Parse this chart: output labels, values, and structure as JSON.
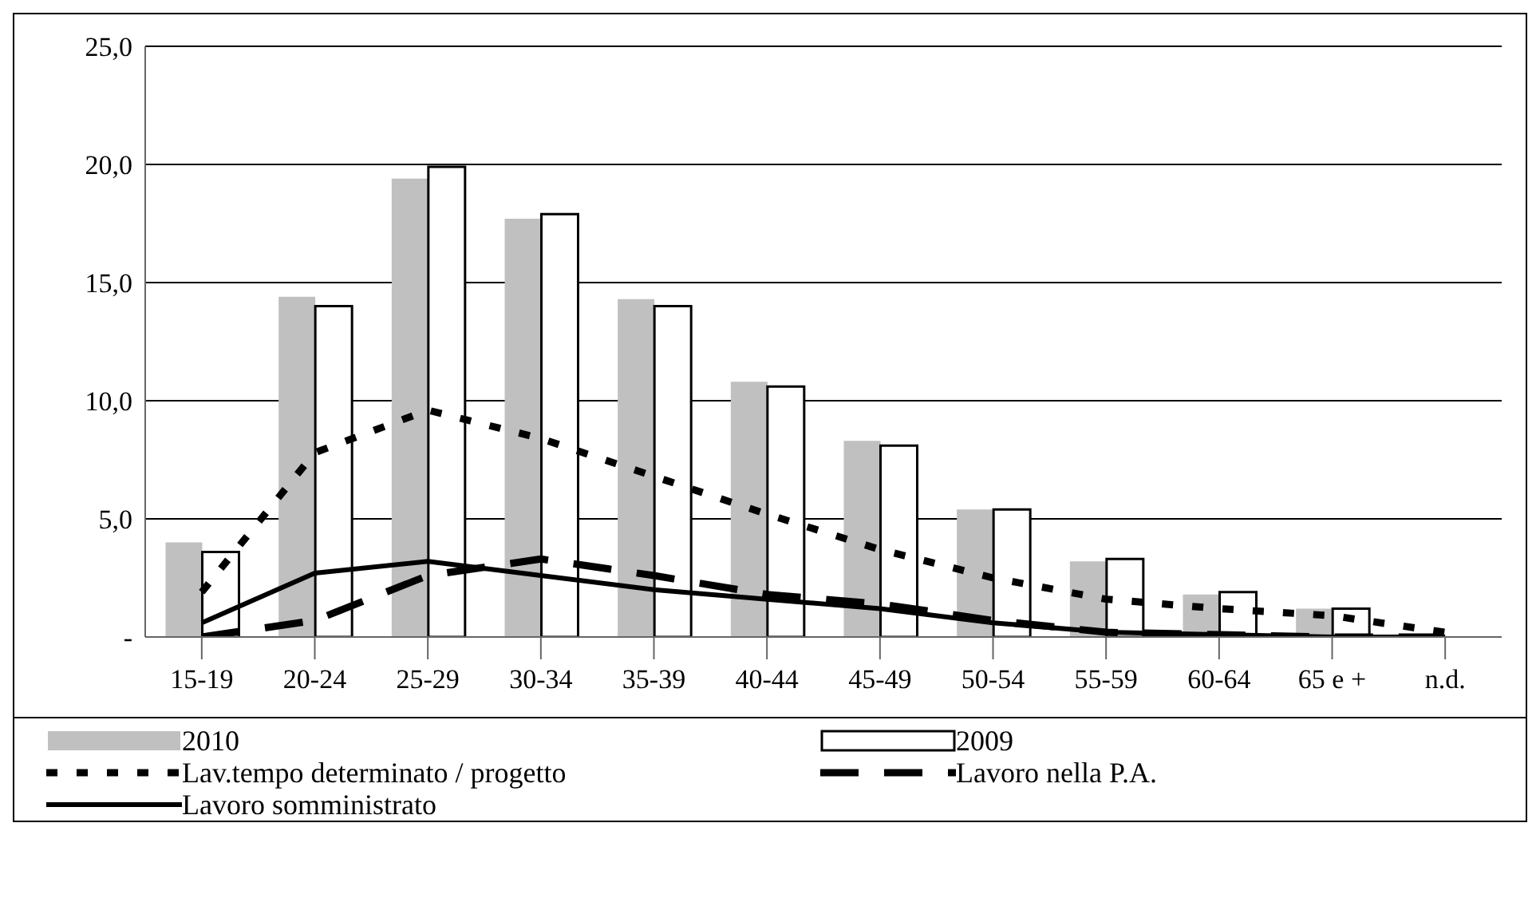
{
  "chart_data": {
    "type": "bar",
    "categories": [
      "15-19",
      "20-24",
      "25-29",
      "30-34",
      "35-39",
      "40-44",
      "45-49",
      "50-54",
      "55-59",
      "60-64",
      "65 e +",
      "n.d."
    ],
    "series": [
      {
        "name": "2010",
        "color": "#c0c0c0",
        "values": [
          4.0,
          14.4,
          19.4,
          17.7,
          14.3,
          10.8,
          8.3,
          5.4,
          3.2,
          1.8,
          1.2,
          null
        ]
      },
      {
        "name": "2009",
        "color": "#ffffff",
        "values": [
          3.6,
          14.0,
          19.9,
          17.9,
          14.0,
          10.6,
          8.1,
          5.4,
          3.3,
          1.9,
          1.2,
          null
        ]
      },
      {
        "name": "Lav.tempo determinato / progetto",
        "type": "line",
        "line_style": "dotted",
        "color": "#000000",
        "values": [
          1.9,
          7.8,
          9.6,
          8.4,
          6.8,
          5.2,
          3.7,
          2.5,
          1.6,
          1.2,
          0.9,
          0.2
        ]
      },
      {
        "name": "Lavoro nella P.A.",
        "type": "line",
        "line_style": "dashed",
        "color": "#000000",
        "values": [
          0.0,
          0.7,
          2.6,
          3.3,
          2.6,
          1.8,
          1.4,
          0.7,
          0.2,
          0.1,
          0.0,
          0.0
        ]
      },
      {
        "name": "Lavoro somministrato",
        "type": "line",
        "line_style": "solid",
        "color": "#000000",
        "values": [
          0.6,
          2.7,
          3.2,
          2.6,
          2.0,
          1.6,
          1.2,
          0.6,
          0.2,
          0.1,
          0.0,
          0.0
        ]
      }
    ],
    "ylim": [
      0,
      25
    ],
    "yticks": [
      {
        "value": 0,
        "label": "-"
      },
      {
        "value": 5,
        "label": "5,0"
      },
      {
        "value": 10,
        "label": "10,0"
      },
      {
        "value": 15,
        "label": "15,0"
      },
      {
        "value": 20,
        "label": "20,0"
      },
      {
        "value": 25,
        "label": "25,0"
      }
    ],
    "grid": "y",
    "legend": "bottom",
    "marker": "none"
  }
}
